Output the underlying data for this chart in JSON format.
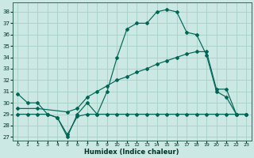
{
  "xlabel": "Humidex (Indice chaleur)",
  "bg_color": "#cce8e4",
  "grid_color": "#aad4c8",
  "line_color": "#006655",
  "xlim": [
    -0.5,
    23.5
  ],
  "ylim": [
    26.7,
    38.8
  ],
  "yticks": [
    27,
    28,
    29,
    30,
    31,
    32,
    33,
    34,
    35,
    36,
    37,
    38
  ],
  "xticks": [
    0,
    1,
    2,
    3,
    4,
    5,
    6,
    7,
    8,
    9,
    10,
    11,
    12,
    13,
    14,
    15,
    16,
    17,
    18,
    19,
    20,
    21,
    22,
    23
  ],
  "line1_x": [
    0,
    1,
    2,
    3,
    4,
    5,
    6,
    7,
    8,
    9,
    10,
    11,
    12,
    13,
    14,
    15,
    16,
    17,
    18,
    19,
    20,
    21,
    22,
    23
  ],
  "line1_y": [
    30.8,
    30.0,
    30.0,
    29.0,
    28.7,
    27.0,
    29.0,
    30.0,
    29.0,
    31.0,
    34.0,
    36.5,
    37.0,
    37.0,
    38.0,
    38.2,
    38.0,
    36.2,
    36.0,
    34.2,
    31.0,
    30.5,
    29.0,
    29.0
  ],
  "line2_x": [
    0,
    2,
    5,
    6,
    7,
    8,
    9,
    10,
    11,
    12,
    13,
    14,
    15,
    16,
    17,
    18,
    19,
    20,
    21,
    22,
    23
  ],
  "line2_y": [
    29.5,
    29.5,
    29.2,
    29.5,
    30.5,
    31.0,
    31.5,
    32.0,
    32.3,
    32.7,
    33.0,
    33.4,
    33.7,
    34.0,
    34.3,
    34.5,
    34.5,
    31.2,
    31.2,
    29.0,
    29.0
  ],
  "line3_x": [
    0,
    1,
    2,
    3,
    4,
    5,
    6,
    7,
    8,
    9,
    10,
    11,
    12,
    13,
    14,
    15,
    16,
    17,
    18,
    19,
    20,
    21,
    22,
    23
  ],
  "line3_y": [
    29.0,
    29.0,
    29.0,
    29.0,
    28.7,
    27.2,
    28.8,
    29.0,
    29.0,
    29.0,
    29.0,
    29.0,
    29.0,
    29.0,
    29.0,
    29.0,
    29.0,
    29.0,
    29.0,
    29.0,
    29.0,
    29.0,
    29.0,
    29.0
  ]
}
